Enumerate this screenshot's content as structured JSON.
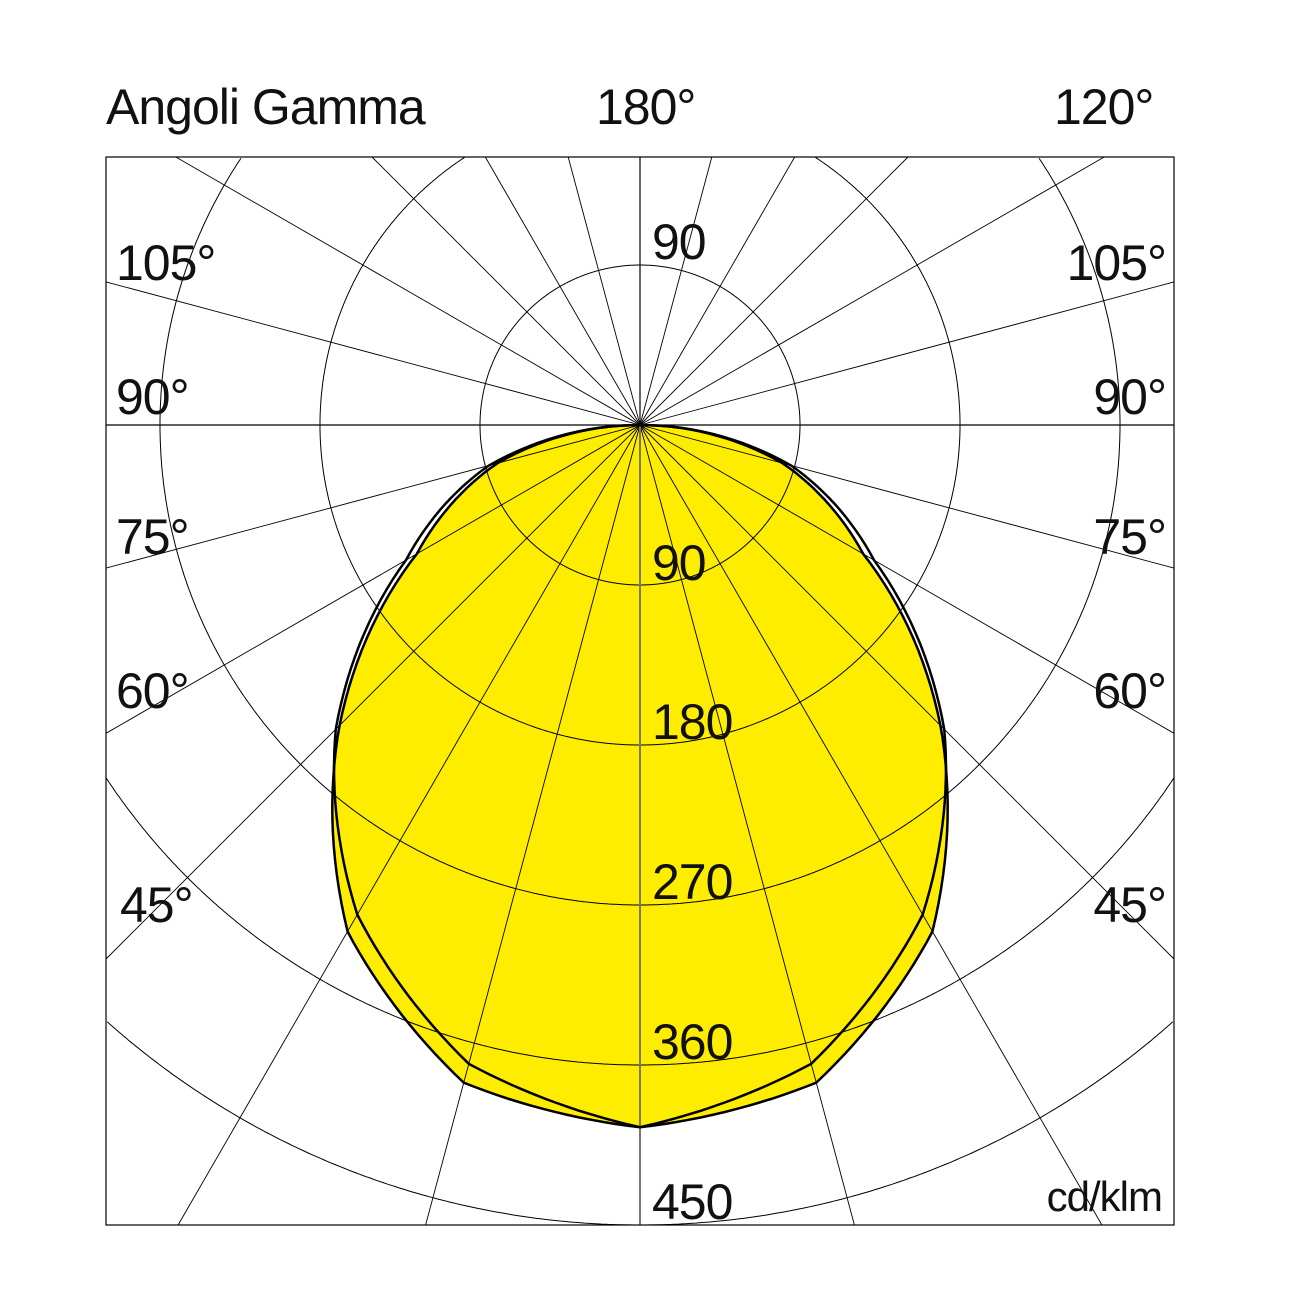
{
  "header": {
    "title": "Angoli Gamma",
    "center_angle": "180°",
    "right_angle": "120°"
  },
  "unit": "cd/klm",
  "left_angle_labels": [
    "105°",
    "90°",
    "75°",
    "60°",
    "45°"
  ],
  "right_angle_labels": [
    "105°",
    "90°",
    "75°",
    "60°",
    "45°"
  ],
  "ring_labels": [
    "90",
    "90",
    "180",
    "270",
    "360",
    "450"
  ],
  "chart_data": {
    "type": "polar",
    "unit": "cd/klm",
    "radial_ticks": [
      90,
      180,
      270,
      360,
      450
    ],
    "angle_step_deg": 15,
    "fill_color": "#ffed00",
    "series": [
      {
        "style": "filled-yellow",
        "angles": [
          0,
          15,
          30,
          45,
          60,
          75,
          90
        ],
        "values": [
          395,
          383,
          329,
          239,
          145,
          83,
          0
        ]
      },
      {
        "style": "outline-black",
        "angles": [
          0,
          15,
          30,
          45,
          60,
          75,
          90
        ],
        "values": [
          395,
          372,
          318,
          242,
          152,
          88,
          0
        ]
      }
    ]
  }
}
